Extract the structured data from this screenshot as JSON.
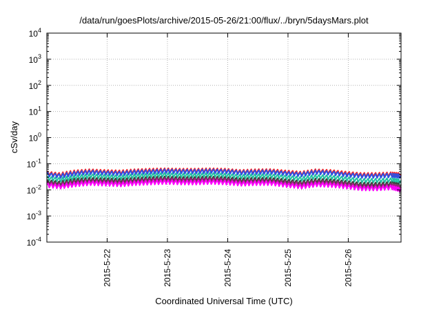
{
  "chart_data": {
    "type": "line",
    "title": "/data/run/goesPlots/archive/2015-05-26/21:00/flux/../bryn/5daysMars.plot",
    "xlabel": "Coordinated Universal Time (UTC)",
    "ylabel": "cSv/day",
    "yscale": "log",
    "ylim": [
      0.0001,
      10000
    ],
    "xlim": [
      "2015-05-21 00:00",
      "2015-05-26 21:00"
    ],
    "grid": true,
    "legend": "none",
    "yticks": [
      {
        "value": 0.0001,
        "base": "10",
        "exp": "-4"
      },
      {
        "value": 0.001,
        "base": "10",
        "exp": "-3"
      },
      {
        "value": 0.01,
        "base": "10",
        "exp": "-2"
      },
      {
        "value": 0.1,
        "base": "10",
        "exp": "-1"
      },
      {
        "value": 1,
        "base": "10",
        "exp": "0"
      },
      {
        "value": 10,
        "base": "10",
        "exp": "1"
      },
      {
        "value": 100,
        "base": "10",
        "exp": "2"
      },
      {
        "value": 1000,
        "base": "10",
        "exp": "3"
      },
      {
        "value": 10000,
        "base": "10",
        "exp": "4"
      }
    ],
    "xticks": [
      {
        "value": "2015-05-22",
        "label": "2015-5-22"
      },
      {
        "value": "2015-05-23",
        "label": "2015-5-23"
      },
      {
        "value": "2015-05-24",
        "label": "2015-5-24"
      },
      {
        "value": "2015-05-25",
        "label": "2015-5-25"
      },
      {
        "value": "2015-05-26",
        "label": "2015-5-26"
      }
    ],
    "x": [
      "2015-05-21 00:00",
      "2015-05-21 06:00",
      "2015-05-21 12:00",
      "2015-05-21 18:00",
      "2015-05-22 00:00",
      "2015-05-22 06:00",
      "2015-05-22 12:00",
      "2015-05-22 18:00",
      "2015-05-23 00:00",
      "2015-05-23 06:00",
      "2015-05-23 12:00",
      "2015-05-23 18:00",
      "2015-05-24 00:00",
      "2015-05-24 06:00",
      "2015-05-24 12:00",
      "2015-05-24 18:00",
      "2015-05-25 00:00",
      "2015-05-25 06:00",
      "2015-05-25 12:00",
      "2015-05-25 18:00",
      "2015-05-26 00:00",
      "2015-05-26 06:00",
      "2015-05-26 12:00",
      "2015-05-26 18:00",
      "2015-05-26 21:00"
    ],
    "series": [
      {
        "color": "#ff2020",
        "values": [
          0.046,
          0.04,
          0.05,
          0.055,
          0.052,
          0.05,
          0.055,
          0.058,
          0.06,
          0.058,
          0.058,
          0.06,
          0.058,
          0.052,
          0.055,
          0.056,
          0.05,
          0.045,
          0.055,
          0.052,
          0.045,
          0.04,
          0.04,
          0.042,
          0.04
        ]
      },
      {
        "color": "#3050e0",
        "values": [
          0.042,
          0.036,
          0.045,
          0.05,
          0.047,
          0.045,
          0.05,
          0.052,
          0.055,
          0.053,
          0.053,
          0.055,
          0.053,
          0.048,
          0.05,
          0.051,
          0.045,
          0.041,
          0.05,
          0.047,
          0.04,
          0.036,
          0.036,
          0.038,
          0.036
        ]
      },
      {
        "color": "#20c0a0",
        "values": [
          0.03,
          0.026,
          0.032,
          0.036,
          0.034,
          0.032,
          0.036,
          0.038,
          0.04,
          0.038,
          0.038,
          0.04,
          0.038,
          0.034,
          0.036,
          0.036,
          0.032,
          0.028,
          0.034,
          0.032,
          0.028,
          0.024,
          0.024,
          0.025,
          0.023
        ]
      },
      {
        "color": "#404040",
        "values": [
          0.022,
          0.019,
          0.024,
          0.026,
          0.025,
          0.024,
          0.026,
          0.028,
          0.029,
          0.028,
          0.028,
          0.029,
          0.028,
          0.025,
          0.026,
          0.026,
          0.023,
          0.02,
          0.024,
          0.023,
          0.02,
          0.017,
          0.017,
          0.018,
          0.016
        ]
      },
      {
        "color": "#a02080",
        "values": [
          0.019,
          0.016,
          0.02,
          0.022,
          0.021,
          0.02,
          0.022,
          0.024,
          0.025,
          0.024,
          0.024,
          0.025,
          0.024,
          0.021,
          0.022,
          0.022,
          0.019,
          0.017,
          0.02,
          0.019,
          0.017,
          0.014,
          0.014,
          0.015,
          0.013
        ]
      },
      {
        "color": "#ff00ff",
        "values": [
          0.016,
          0.014,
          0.017,
          0.019,
          0.018,
          0.017,
          0.019,
          0.02,
          0.021,
          0.02,
          0.02,
          0.021,
          0.02,
          0.018,
          0.019,
          0.019,
          0.016,
          0.014,
          0.017,
          0.016,
          0.014,
          0.012,
          0.012,
          0.013,
          0.011
        ]
      }
    ]
  }
}
